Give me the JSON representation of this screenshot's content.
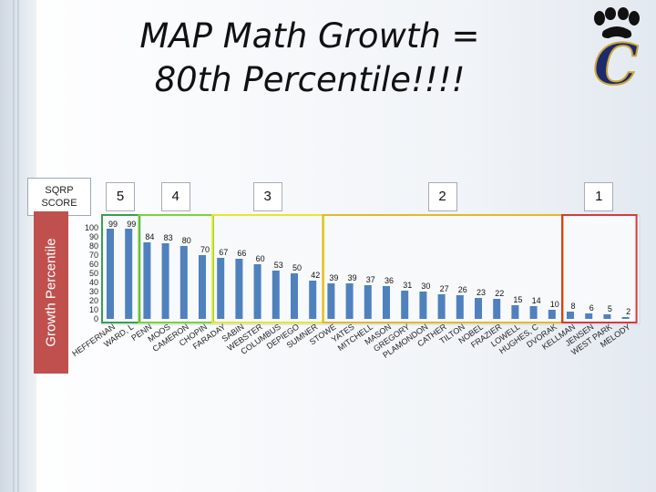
{
  "title_line1": "MAP Math Growth =",
  "title_line2": "80th Percentile!!!!",
  "sqrp_label_1": "SQRP",
  "sqrp_label_2": "SCORE",
  "axis_label": "Growth Percentile",
  "logo_letter": "C",
  "colors": {
    "bar": "#4f81bd",
    "group5": "#3a9e4f",
    "group4": "#7bd23a",
    "group3": "#e6e62a",
    "group2": "#e2b92a",
    "group1": "#d63a3a",
    "panel": "#c0504d"
  },
  "chart_data": {
    "type": "bar",
    "ylim": [
      0,
      100
    ],
    "yticks": [
      0,
      10,
      20,
      30,
      40,
      50,
      60,
      70,
      80,
      90,
      100
    ],
    "categories": [
      "HEFFERNAN",
      "WARD, L",
      "PENN",
      "MOOS",
      "CAMERON",
      "CHOPIN",
      "FARADAY",
      "SABIN",
      "WEBSTER",
      "COLUMBUS",
      "DEPIEGO",
      "SUMNER",
      "STOWE",
      "YATES",
      "MITCHELL",
      "MASON",
      "GREGORY",
      "PLAMONDON",
      "CATHER",
      "TILTON",
      "NOBEL",
      "FRAZIER",
      "LOWELL",
      "HUGHES, C",
      "DVORAK",
      "KELLMAN",
      "JENSEN",
      "WEST PARK",
      "MELODY"
    ],
    "values": [
      99,
      99,
      84,
      83,
      80,
      70,
      67,
      66,
      60,
      53,
      50,
      42,
      39,
      39,
      37,
      36,
      31,
      30,
      27,
      26,
      23,
      22,
      15,
      14,
      10,
      8,
      6,
      5,
      2
    ],
    "groups": [
      {
        "score": "5",
        "start": 0,
        "end": 1,
        "color_key": "group5"
      },
      {
        "score": "4",
        "start": 2,
        "end": 5,
        "color_key": "group4"
      },
      {
        "score": "3",
        "start": 6,
        "end": 11,
        "color_key": "group3"
      },
      {
        "score": "2",
        "start": 12,
        "end": 24,
        "color_key": "group2"
      },
      {
        "score": "1",
        "start": 25,
        "end": 28,
        "color_key": "group1"
      }
    ]
  }
}
